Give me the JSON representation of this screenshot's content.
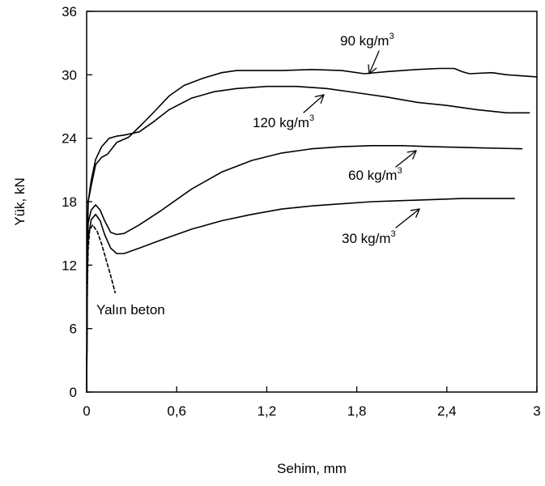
{
  "chart_data": {
    "type": "line",
    "title": "",
    "xlabel": "Sehim, mm",
    "ylabel": "Yük, kN",
    "xlim": [
      0,
      3
    ],
    "ylim": [
      0,
      36
    ],
    "x_ticks": [
      0,
      0.6,
      1.2,
      1.8,
      2.4,
      3
    ],
    "x_tick_labels": [
      "0",
      "0,6",
      "1,2",
      "1,8",
      "2,4",
      "3"
    ],
    "y_ticks": [
      0,
      6,
      12,
      18,
      24,
      30,
      36
    ],
    "y_tick_labels": [
      "0",
      "6",
      "12",
      "18",
      "24",
      "30",
      "36"
    ],
    "grid": false,
    "series": [
      {
        "name": "90 kg/m3",
        "points": [
          [
            0,
            0
          ],
          [
            0.005,
            14
          ],
          [
            0.01,
            18
          ],
          [
            0.03,
            19.5
          ],
          [
            0.06,
            21.5
          ],
          [
            0.1,
            22.2
          ],
          [
            0.14,
            22.5
          ],
          [
            0.2,
            23.6
          ],
          [
            0.28,
            24.1
          ],
          [
            0.36,
            25.2
          ],
          [
            0.45,
            26.5
          ],
          [
            0.55,
            28
          ],
          [
            0.65,
            29
          ],
          [
            0.78,
            29.7
          ],
          [
            0.9,
            30.2
          ],
          [
            1,
            30.4
          ],
          [
            1.1,
            30.4
          ],
          [
            1.3,
            30.4
          ],
          [
            1.5,
            30.5
          ],
          [
            1.7,
            30.4
          ],
          [
            1.85,
            30.1
          ],
          [
            2.0,
            30.3
          ],
          [
            2.2,
            30.5
          ],
          [
            2.35,
            30.6
          ],
          [
            2.45,
            30.6
          ],
          [
            2.5,
            30.3
          ],
          [
            2.55,
            30.1
          ],
          [
            2.7,
            30.2
          ],
          [
            2.8,
            30.0
          ],
          [
            3.0,
            29.8
          ]
        ]
      },
      {
        "name": "120 kg/m3",
        "points": [
          [
            0,
            0
          ],
          [
            0.005,
            14
          ],
          [
            0.01,
            18
          ],
          [
            0.03,
            20
          ],
          [
            0.06,
            22
          ],
          [
            0.1,
            23.2
          ],
          [
            0.15,
            24
          ],
          [
            0.2,
            24.2
          ],
          [
            0.25,
            24.3
          ],
          [
            0.35,
            24.6
          ],
          [
            0.45,
            25.6
          ],
          [
            0.55,
            26.7
          ],
          [
            0.7,
            27.8
          ],
          [
            0.85,
            28.4
          ],
          [
            1.0,
            28.7
          ],
          [
            1.2,
            28.9
          ],
          [
            1.4,
            28.9
          ],
          [
            1.6,
            28.7
          ],
          [
            1.8,
            28.3
          ],
          [
            2.0,
            27.9
          ],
          [
            2.2,
            27.4
          ],
          [
            2.4,
            27.1
          ],
          [
            2.6,
            26.7
          ],
          [
            2.8,
            26.4
          ],
          [
            2.95,
            26.4
          ]
        ]
      },
      {
        "name": "60 kg/m3",
        "points": [
          [
            0,
            0
          ],
          [
            0.005,
            12
          ],
          [
            0.01,
            16
          ],
          [
            0.03,
            17.2
          ],
          [
            0.06,
            17.7
          ],
          [
            0.09,
            17.2
          ],
          [
            0.12,
            16.2
          ],
          [
            0.16,
            15.1
          ],
          [
            0.2,
            14.9
          ],
          [
            0.25,
            15
          ],
          [
            0.35,
            15.8
          ],
          [
            0.5,
            17.2
          ],
          [
            0.7,
            19.2
          ],
          [
            0.9,
            20.8
          ],
          [
            1.1,
            21.9
          ],
          [
            1.3,
            22.6
          ],
          [
            1.5,
            23.0
          ],
          [
            1.7,
            23.2
          ],
          [
            1.9,
            23.3
          ],
          [
            2.1,
            23.3
          ],
          [
            2.3,
            23.2
          ],
          [
            2.6,
            23.1
          ],
          [
            2.9,
            23.0
          ]
        ]
      },
      {
        "name": "30 kg/m3",
        "points": [
          [
            0,
            0
          ],
          [
            0.005,
            11
          ],
          [
            0.01,
            14.5
          ],
          [
            0.03,
            16.3
          ],
          [
            0.06,
            16.8
          ],
          [
            0.09,
            16.2
          ],
          [
            0.12,
            14.9
          ],
          [
            0.16,
            13.6
          ],
          [
            0.2,
            13.1
          ],
          [
            0.25,
            13.1
          ],
          [
            0.35,
            13.6
          ],
          [
            0.5,
            14.4
          ],
          [
            0.7,
            15.4
          ],
          [
            0.9,
            16.2
          ],
          [
            1.1,
            16.8
          ],
          [
            1.3,
            17.3
          ],
          [
            1.5,
            17.6
          ],
          [
            1.7,
            17.8
          ],
          [
            1.9,
            18.0
          ],
          [
            2.1,
            18.1
          ],
          [
            2.3,
            18.2
          ],
          [
            2.5,
            18.3
          ],
          [
            2.7,
            18.3
          ],
          [
            2.85,
            18.3
          ]
        ]
      },
      {
        "name": "Yalın beton",
        "dashed": true,
        "points": [
          [
            0,
            0
          ],
          [
            0.005,
            10
          ],
          [
            0.01,
            13.5
          ],
          [
            0.02,
            15.3
          ],
          [
            0.04,
            15.8
          ],
          [
            0.07,
            15.2
          ],
          [
            0.1,
            14
          ],
          [
            0.13,
            12.5
          ],
          [
            0.16,
            11
          ],
          [
            0.19,
            9.4
          ]
        ]
      }
    ],
    "annotations": [
      {
        "text": "90 kg/m",
        "sup": "3",
        "series": "90 kg/m3"
      },
      {
        "text": "120 kg/m",
        "sup": "3",
        "series": "120 kg/m3"
      },
      {
        "text": "60 kg/m",
        "sup": "3",
        "series": "60 kg/m3"
      },
      {
        "text": "30 kg/m",
        "sup": "3",
        "series": "30 kg/m3"
      },
      {
        "text": "Yalın beton",
        "sup": "",
        "series": "Yalın beton"
      }
    ]
  }
}
